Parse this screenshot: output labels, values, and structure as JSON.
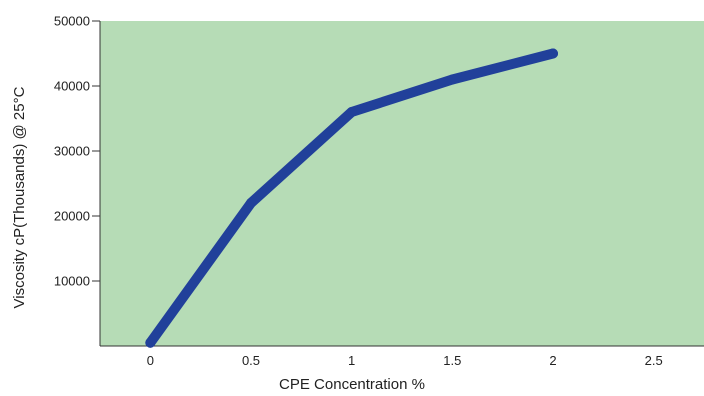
{
  "chart_data": {
    "type": "line",
    "title": "",
    "xlabel": "CPE Concentration %",
    "ylabel": "Viscosity cP(Thousands) @ 25°C",
    "xlim": [
      -0.25,
      2.75
    ],
    "ylim": [
      0,
      50000
    ],
    "x_ticks": [
      0,
      0.5,
      1,
      1.5,
      2,
      2.5
    ],
    "x_tick_labels": [
      "0",
      "0.5",
      "1",
      "1.5",
      "2",
      "2.5"
    ],
    "y_ticks": [
      10000,
      20000,
      30000,
      40000,
      50000
    ],
    "y_tick_labels": [
      "10000",
      "20000",
      "30000",
      "40000",
      "50000"
    ],
    "grid": false,
    "legend": "none",
    "plot_background": "#b6dcb6",
    "series": [
      {
        "color": "#21409a",
        "x": [
          0,
          0.5,
          1,
          1.5,
          2
        ],
        "y": [
          500,
          22000,
          36000,
          41000,
          45000
        ]
      }
    ]
  }
}
